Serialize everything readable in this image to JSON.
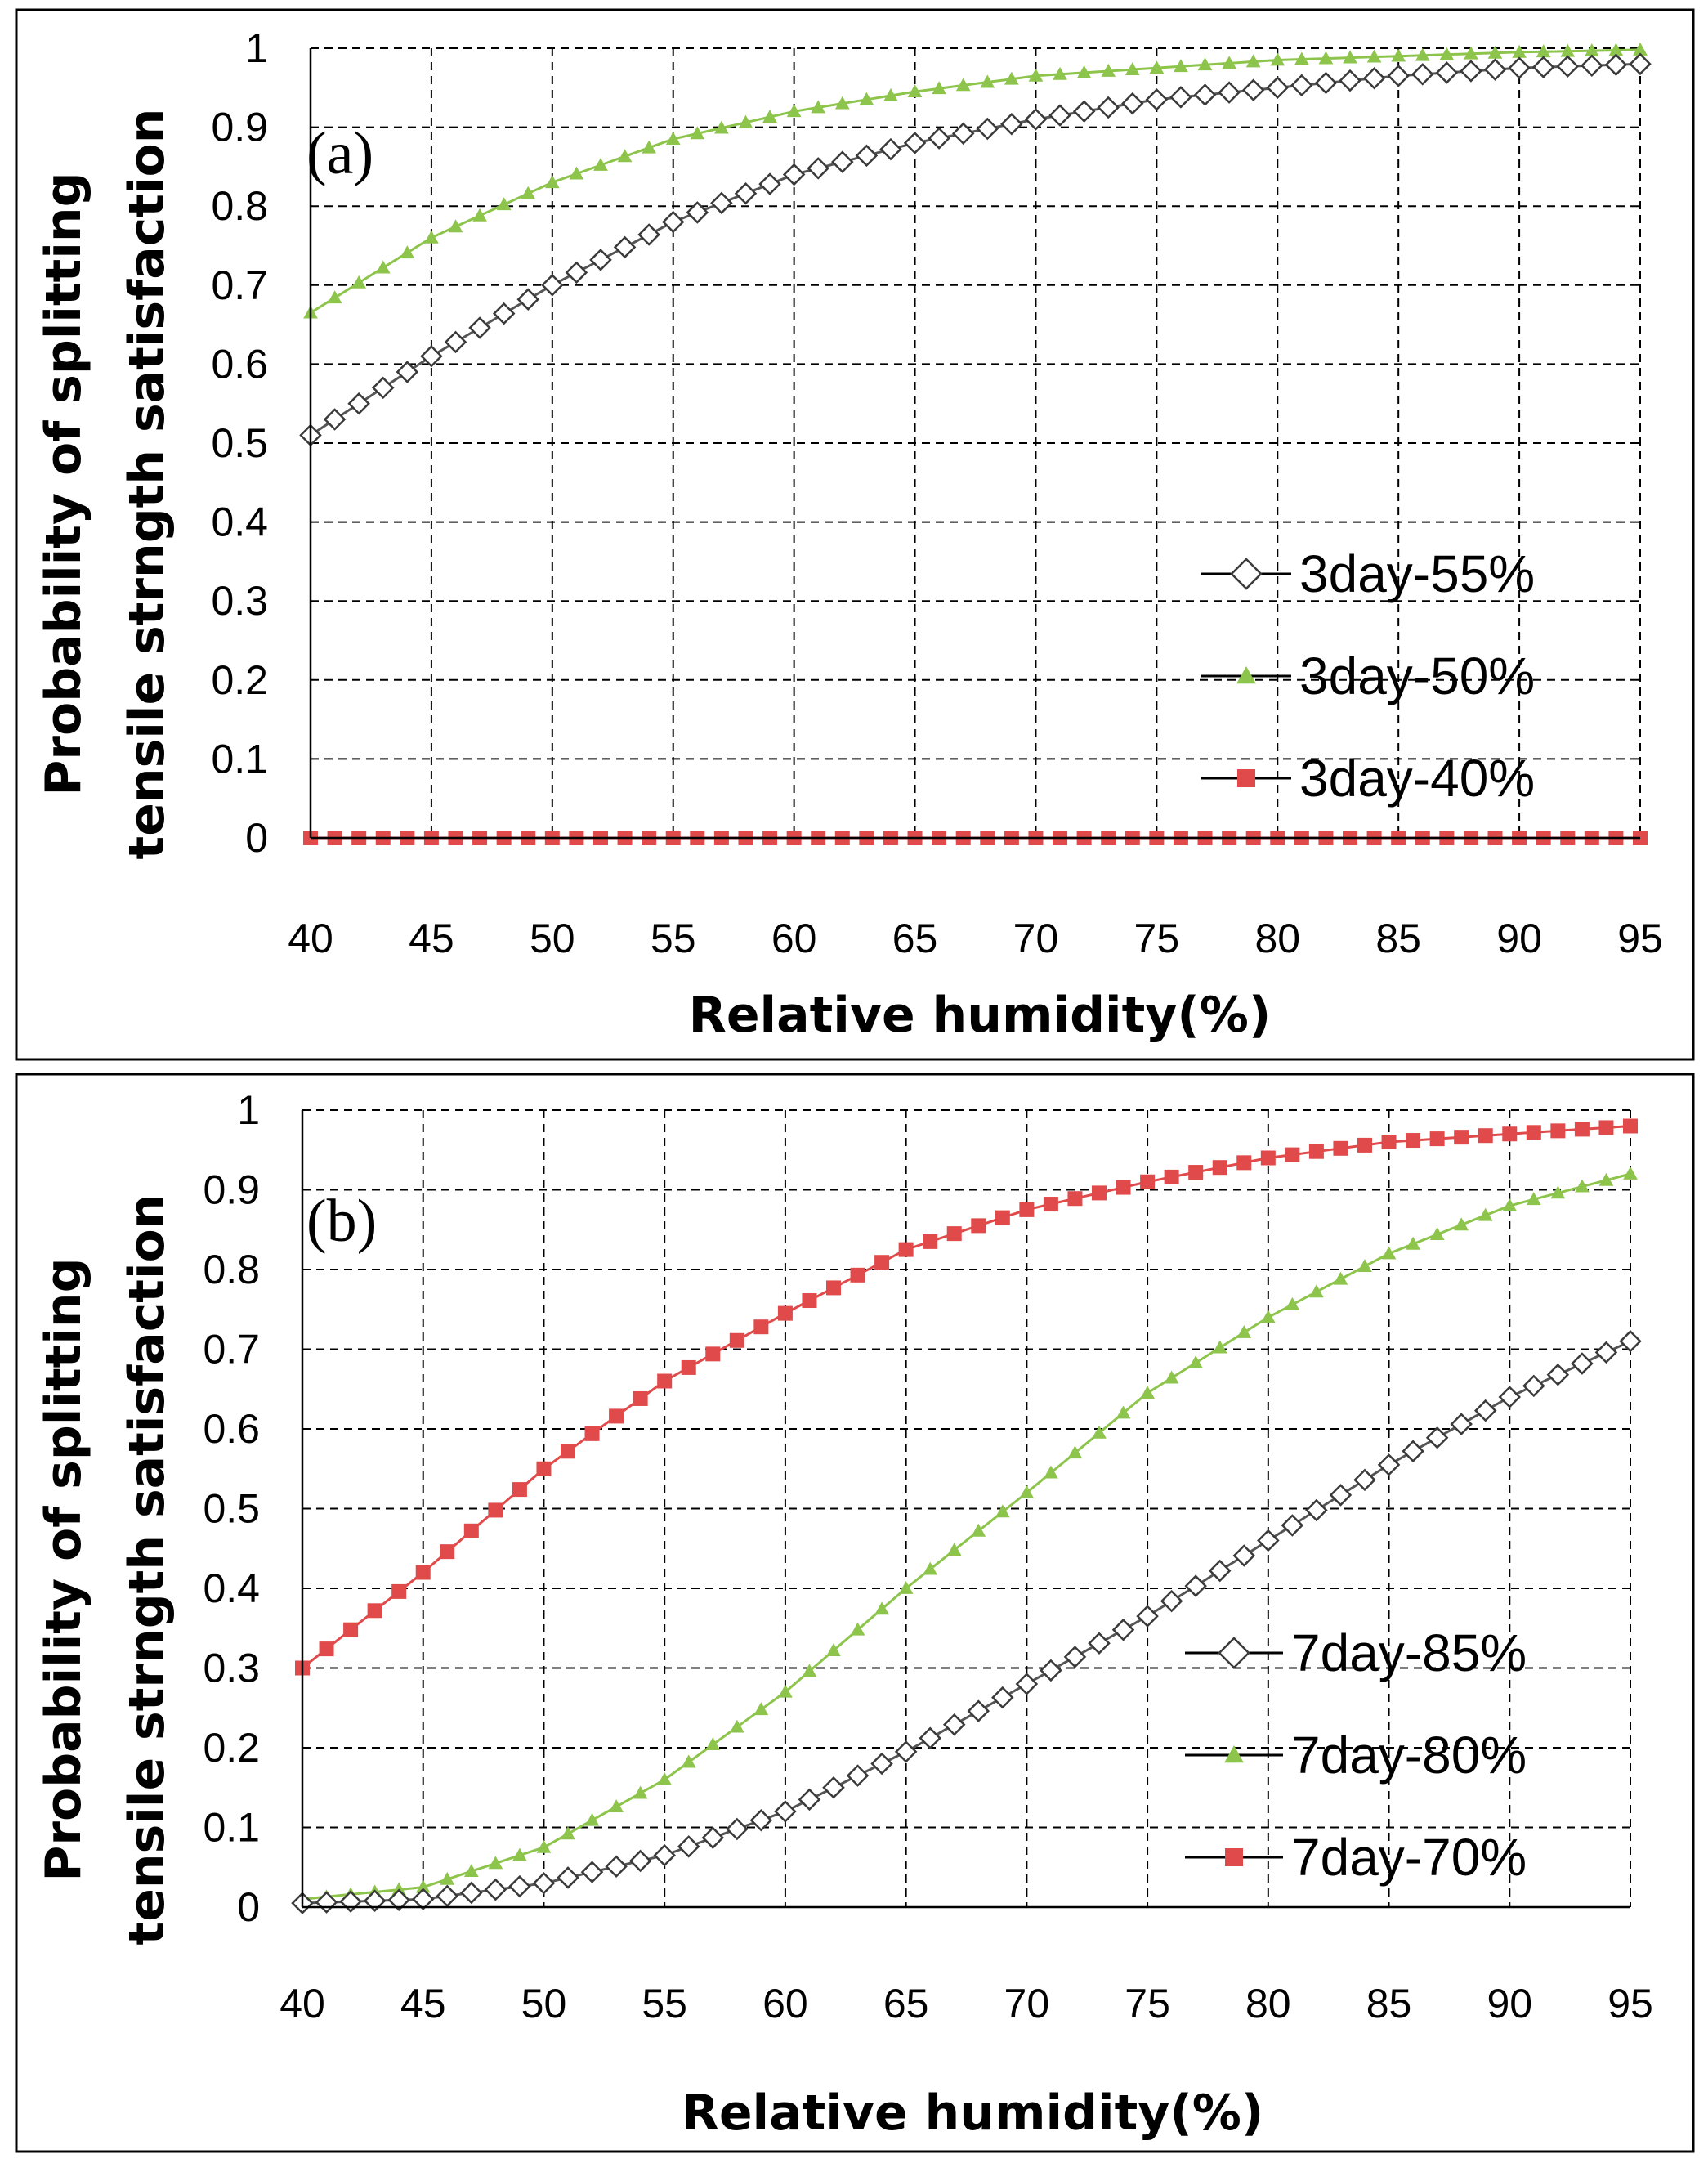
{
  "chart_data": [
    {
      "type": "line",
      "panel_label": "(a)",
      "xlabel": "Relative humidity(%)",
      "ylabel_line1": "Probability of splitting",
      "ylabel_line2": "tensile strngth satisfaction",
      "xlim": [
        40,
        95
      ],
      "ylim": [
        0,
        1
      ],
      "xticks": [
        "40",
        "45",
        "50",
        "55",
        "60",
        "65",
        "70",
        "75",
        "80",
        "85",
        "90",
        "95"
      ],
      "yticks": [
        "0",
        "0.1",
        "0.2",
        "0.3",
        "0.4",
        "0.5",
        "0.6",
        "0.7",
        "0.8",
        "0.9",
        "1"
      ],
      "grid": true,
      "legend_position": "lower-right",
      "series": [
        {
          "name": "3day-55%",
          "marker": "diamond-open",
          "color": "#3a3a3a",
          "x": [
            40,
            45,
            50,
            55,
            60,
            65,
            70,
            75,
            80,
            85,
            90,
            95
          ],
          "y": [
            0.51,
            0.61,
            0.7,
            0.78,
            0.84,
            0.88,
            0.91,
            0.935,
            0.95,
            0.965,
            0.975,
            0.98
          ]
        },
        {
          "name": "3day-50%",
          "marker": "triangle",
          "color": "#8dc44b",
          "x": [
            40,
            45,
            50,
            55,
            60,
            65,
            70,
            75,
            80,
            85,
            90,
            95
          ],
          "y": [
            0.665,
            0.76,
            0.83,
            0.885,
            0.92,
            0.945,
            0.965,
            0.975,
            0.985,
            0.99,
            0.995,
            0.998
          ]
        },
        {
          "name": "3day-40%",
          "marker": "square",
          "color": "#e04a4a",
          "x": [
            40,
            45,
            50,
            55,
            60,
            65,
            70,
            75,
            80,
            85,
            90,
            95
          ],
          "y": [
            0,
            0,
            0,
            0,
            0,
            0,
            0,
            0,
            0,
            0,
            0,
            0
          ]
        }
      ]
    },
    {
      "type": "line",
      "panel_label": "(b)",
      "xlabel": "Relative humidity(%)",
      "ylabel_line1": "Probability of splitting",
      "ylabel_line2": "tensile strngth satisfaction",
      "xlim": [
        40,
        95
      ],
      "ylim": [
        0,
        1
      ],
      "xticks": [
        "40",
        "45",
        "50",
        "55",
        "60",
        "65",
        "70",
        "75",
        "80",
        "85",
        "90",
        "95"
      ],
      "yticks": [
        "0",
        "0.1",
        "0.2",
        "0.3",
        "0.4",
        "0.5",
        "0.6",
        "0.7",
        "0.8",
        "0.9",
        "1"
      ],
      "grid": true,
      "legend_position": "lower-right",
      "series": [
        {
          "name": "7day-85%",
          "marker": "diamond-open",
          "color": "#3a3a3a",
          "x": [
            40,
            45,
            50,
            55,
            60,
            65,
            70,
            75,
            80,
            85,
            90,
            95
          ],
          "y": [
            0.005,
            0.01,
            0.03,
            0.065,
            0.12,
            0.195,
            0.28,
            0.365,
            0.46,
            0.555,
            0.64,
            0.71
          ]
        },
        {
          "name": "7day-80%",
          "marker": "triangle",
          "color": "#8dc44b",
          "x": [
            40,
            45,
            50,
            55,
            60,
            65,
            70,
            75,
            80,
            85,
            90,
            95
          ],
          "y": [
            0.01,
            0.025,
            0.075,
            0.16,
            0.27,
            0.4,
            0.52,
            0.645,
            0.74,
            0.82,
            0.88,
            0.92
          ]
        },
        {
          "name": "7day-70%",
          "marker": "square",
          "color": "#e04a4a",
          "x": [
            40,
            45,
            50,
            55,
            60,
            65,
            70,
            75,
            80,
            85,
            90,
            95
          ],
          "y": [
            0.3,
            0.42,
            0.55,
            0.66,
            0.745,
            0.825,
            0.875,
            0.91,
            0.94,
            0.96,
            0.97,
            0.98
          ]
        }
      ]
    }
  ]
}
